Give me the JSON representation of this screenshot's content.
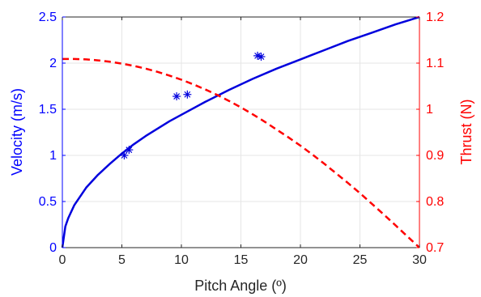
{
  "chart_data": {
    "type": "line",
    "xlabel": "Pitch Angle (º)",
    "ylabel_left": "Velocity (m/s)",
    "ylabel_right": "Thrust (N)",
    "xlim": [
      0,
      30
    ],
    "ylim_left": [
      0,
      2.5
    ],
    "ylim_right": [
      0.7,
      1.2
    ],
    "x_ticks": [
      "0",
      "5",
      "10",
      "15",
      "20",
      "25",
      "30"
    ],
    "y_left_ticks": [
      "0",
      "0.5",
      "1",
      "1.5",
      "2",
      "2.5"
    ],
    "y_right_ticks": [
      "0.7",
      "0.8",
      "0.9",
      "1",
      "1.1",
      "1.2"
    ],
    "grid": true,
    "colors": {
      "left_axis": "#0000ff",
      "right_axis": "#ff0000",
      "axes": "#262626",
      "grid": "#e6e6e6"
    },
    "series": [
      {
        "axis": "left",
        "style": "solid",
        "color": "#0000dd",
        "x": [
          0,
          0.25,
          0.5,
          1,
          2,
          3,
          4,
          5,
          6,
          7,
          8,
          9,
          10,
          12,
          14,
          16,
          18,
          20,
          22,
          24,
          26,
          28,
          30
        ],
        "y": [
          0,
          0.23,
          0.32,
          0.46,
          0.65,
          0.79,
          0.91,
          1.02,
          1.12,
          1.21,
          1.29,
          1.37,
          1.44,
          1.58,
          1.71,
          1.83,
          1.94,
          2.04,
          2.14,
          2.24,
          2.33,
          2.42,
          2.5
        ]
      },
      {
        "axis": "right",
        "style": "dashed",
        "color": "#ff0000",
        "x": [
          0,
          1,
          2,
          3,
          4,
          5,
          6,
          7,
          8,
          9,
          10,
          11,
          12,
          13,
          14,
          15,
          16,
          17,
          18,
          19,
          20,
          21,
          22,
          23,
          24,
          25,
          26,
          27,
          28,
          29,
          30
        ],
        "y": [
          1.109,
          1.109,
          1.108,
          1.106,
          1.103,
          1.099,
          1.094,
          1.088,
          1.081,
          1.073,
          1.064,
          1.054,
          1.043,
          1.031,
          1.018,
          1.004,
          0.989,
          0.973,
          0.956,
          0.939,
          0.921,
          0.902,
          0.882,
          0.861,
          0.84,
          0.818,
          0.795,
          0.772,
          0.748,
          0.724,
          0.7
        ]
      },
      {
        "axis": "left",
        "style": "markers",
        "marker": "asterisk",
        "color": "#0000dd",
        "x": [
          5.2,
          5.6,
          9.6,
          10.5,
          16.4,
          16.7
        ],
        "y": [
          1.0,
          1.06,
          1.64,
          1.66,
          2.08,
          2.07
        ]
      }
    ]
  }
}
